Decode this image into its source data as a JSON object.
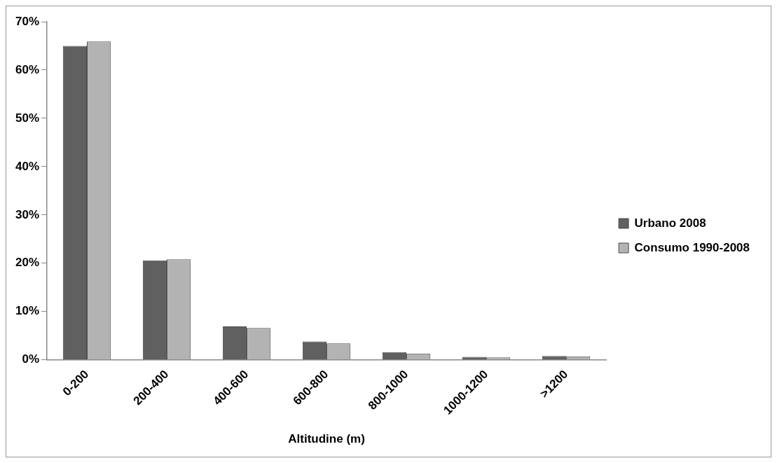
{
  "chart_data": {
    "type": "bar",
    "xlabel": "Altitudine (m)",
    "categories": [
      "0-200",
      "200-400",
      "400-600",
      "600-800",
      "800-1000",
      "1000-1200",
      ">1200"
    ],
    "series": [
      {
        "name": "Urbano 2008",
        "color": "#606060",
        "values": [
          65,
          20.6,
          6.9,
          3.8,
          1.6,
          0.6,
          0.8
        ]
      },
      {
        "name": "Consumo 1990-2008",
        "color": "#b3b3b3",
        "values": [
          65.9,
          20.8,
          6.6,
          3.4,
          1.3,
          0.5,
          0.7
        ]
      }
    ],
    "ylim": [
      0,
      70
    ],
    "yticks": [
      {
        "value": 0,
        "label": "0%"
      },
      {
        "value": 10,
        "label": "10%"
      },
      {
        "value": 20,
        "label": "20%"
      },
      {
        "value": 30,
        "label": "30%"
      },
      {
        "value": 40,
        "label": "40%"
      },
      {
        "value": 50,
        "label": "50%"
      },
      {
        "value": 60,
        "label": "60%"
      },
      {
        "value": 70,
        "label": "70%"
      }
    ],
    "grid": false,
    "legend": "right"
  }
}
